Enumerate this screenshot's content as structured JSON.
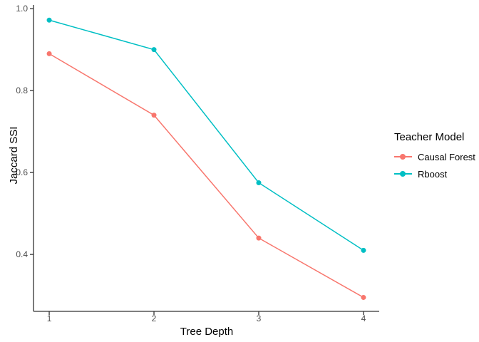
{
  "chart_data": {
    "type": "line",
    "title": "",
    "xlabel": "Tree Depth",
    "ylabel": "Jaccard SSI",
    "x": [
      1,
      2,
      3,
      4
    ],
    "series": [
      {
        "name": "Causal Forest",
        "color": "#F8766D",
        "values": [
          0.89,
          0.74,
          0.44,
          0.295
        ]
      },
      {
        "name": "Rboost",
        "color": "#00BFC4",
        "values": [
          0.972,
          0.9,
          0.575,
          0.41
        ]
      }
    ],
    "xticks": [
      1,
      2,
      3,
      4
    ],
    "xticklabels": [
      "1",
      "2",
      "3",
      "4"
    ],
    "yticks": [
      0.4,
      0.6,
      0.8,
      1.0
    ],
    "yticklabels": [
      "0.4",
      "0.6",
      "0.8",
      "1.0"
    ],
    "xlim": [
      0.85,
      4.15
    ],
    "ylim": [
      0.261,
      1.009
    ],
    "grid": false,
    "legend": {
      "title": "Teacher Model",
      "position": "right"
    },
    "style": {
      "axis_line_color": "#333333",
      "tick_label_color": "#4d4d4d",
      "axis_title_color": "#000000",
      "background": "#ffffff",
      "point_radius": 3.5,
      "line_width": 1.5
    }
  }
}
